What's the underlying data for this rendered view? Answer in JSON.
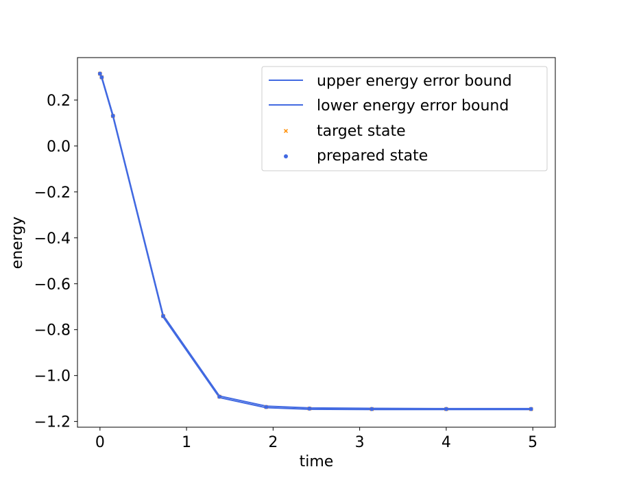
{
  "chart_data": {
    "type": "line",
    "xlabel": "time",
    "ylabel": "energy",
    "xlim": [
      -0.26,
      5.26
    ],
    "ylim": [
      -1.225,
      0.385
    ],
    "xticks": [
      0,
      1,
      2,
      3,
      4,
      5
    ],
    "xtick_labels": [
      "0",
      "1",
      "2",
      "3",
      "4",
      "5"
    ],
    "yticks": [
      0.2,
      0.0,
      -0.2,
      -0.4,
      -0.6,
      -0.8,
      -1.0,
      -1.2
    ],
    "ytick_labels": [
      "0.2",
      "0.0",
      "−0.2",
      "−0.4",
      "−0.6",
      "−0.8",
      "−1.0",
      "−1.2"
    ],
    "grid": false,
    "legend_position": "top-right",
    "colors": {
      "line": "#4169e1",
      "target": "#ff8c00",
      "prepared": "#4169e1"
    },
    "series": [
      {
        "name": "upper energy error bound",
        "kind": "line",
        "x": [
          0,
          0.02,
          0.15,
          0.73,
          1.38,
          1.92,
          2.42,
          3.14,
          4.0,
          4.98
        ],
        "y": [
          0.32,
          0.302,
          0.135,
          -0.737,
          -1.089,
          -1.133,
          -1.141,
          -1.143,
          -1.144,
          -1.144
        ]
      },
      {
        "name": "lower energy error bound",
        "kind": "line",
        "x": [
          0,
          0.02,
          0.15,
          0.73,
          1.38,
          1.92,
          2.42,
          3.14,
          4.0,
          4.98
        ],
        "y": [
          0.31,
          0.296,
          0.128,
          -0.745,
          -1.096,
          -1.14,
          -1.147,
          -1.148,
          -1.148,
          -1.148
        ]
      },
      {
        "name": "target state",
        "kind": "scatter",
        "marker": "x",
        "x": [
          0,
          0.02,
          0.15,
          0.73,
          1.38,
          1.92,
          2.42,
          3.14,
          4.0,
          4.98
        ],
        "y": [
          0.315,
          0.299,
          0.131,
          -0.741,
          -1.092,
          -1.137,
          -1.144,
          -1.146,
          -1.146,
          -1.146
        ]
      },
      {
        "name": "prepared state",
        "kind": "scatter",
        "marker": "dot",
        "x": [
          0,
          0.02,
          0.15,
          0.73,
          1.38,
          1.92,
          2.42,
          3.14,
          4.0,
          4.98
        ],
        "y": [
          0.315,
          0.299,
          0.131,
          -0.741,
          -1.092,
          -1.137,
          -1.144,
          -1.146,
          -1.146,
          -1.146
        ]
      }
    ]
  }
}
